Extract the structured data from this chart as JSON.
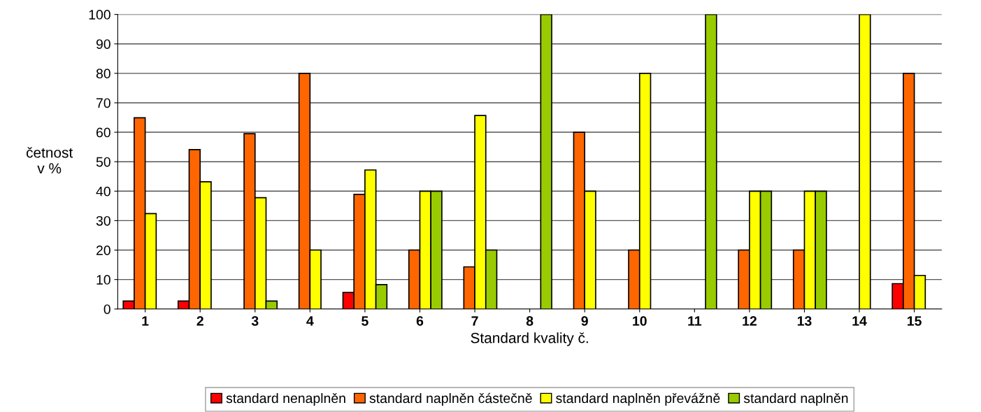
{
  "chart_data": {
    "type": "bar",
    "xlabel": "Standard kvality č.",
    "ylabel": "četnost\nv %",
    "categories": [
      "1",
      "2",
      "3",
      "4",
      "5",
      "6",
      "7",
      "8",
      "9",
      "10",
      "11",
      "12",
      "13",
      "14",
      "15"
    ],
    "series": [
      {
        "name": "standard nenaplněn",
        "color": "#ff0000",
        "values": [
          2.7,
          2.7,
          0,
          0,
          5.6,
          0,
          0,
          0,
          0,
          0,
          0,
          0,
          0,
          0,
          8.6
        ]
      },
      {
        "name": "standard naplněn částečně",
        "color": "#ff6600",
        "values": [
          64.9,
          54.1,
          59.5,
          80,
          38.9,
          20,
          14.3,
          0,
          60,
          20,
          0,
          20,
          20,
          0,
          80
        ]
      },
      {
        "name": "standard naplněn převážně",
        "color": "#ffff00",
        "values": [
          32.4,
          43.2,
          37.8,
          20,
          47.2,
          40,
          65.7,
          0,
          40,
          80,
          0,
          40,
          40,
          100,
          11.4
        ]
      },
      {
        "name": "standard naplněn",
        "color": "#99cc00",
        "values": [
          0,
          0,
          2.7,
          0,
          8.3,
          40,
          20,
          100,
          0,
          0,
          100,
          40,
          40,
          0,
          0
        ]
      }
    ],
    "ylim": [
      0,
      100
    ],
    "yticks": [
      0,
      10,
      20,
      30,
      40,
      50,
      60,
      70,
      80,
      90,
      100
    ],
    "grid": "y",
    "legend": "bottom"
  }
}
